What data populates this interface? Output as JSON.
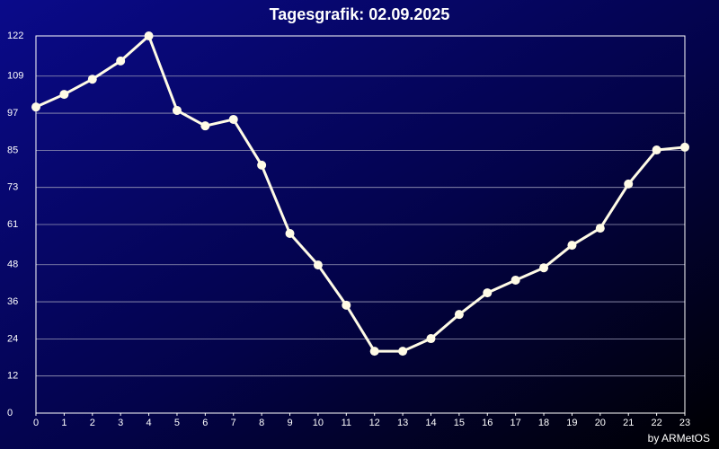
{
  "chart_data": {
    "type": "line",
    "title": "Tagesgrafik: 02.09.2025",
    "footer": "by ARMetOS",
    "x": [
      0,
      1,
      2,
      3,
      4,
      5,
      6,
      7,
      8,
      9,
      10,
      11,
      12,
      13,
      14,
      15,
      16,
      17,
      18,
      19,
      20,
      21,
      22,
      23
    ],
    "series": [
      {
        "color": "#fffbe6",
        "values": [
          99.0,
          103.1,
          108.0,
          113.9,
          122,
          97.9,
          92.9,
          95.0,
          80.2,
          58.1,
          47.9,
          34.9,
          20.0,
          20.0,
          24.1,
          31.9,
          38.9,
          43.0,
          47.0,
          54.3,
          59.8,
          74.1,
          85.1,
          86.0
        ]
      }
    ],
    "xlim": [
      0,
      23
    ],
    "xticks": [
      0,
      1,
      2,
      3,
      4,
      5,
      6,
      7,
      8,
      9,
      10,
      11,
      12,
      13,
      14,
      15,
      16,
      17,
      18,
      19,
      20,
      21,
      22,
      23
    ],
    "ylim": [
      0,
      122
    ],
    "yticks": [
      0,
      12,
      24,
      36,
      48,
      61,
      73,
      85,
      97,
      109,
      122
    ],
    "grid": true
  }
}
